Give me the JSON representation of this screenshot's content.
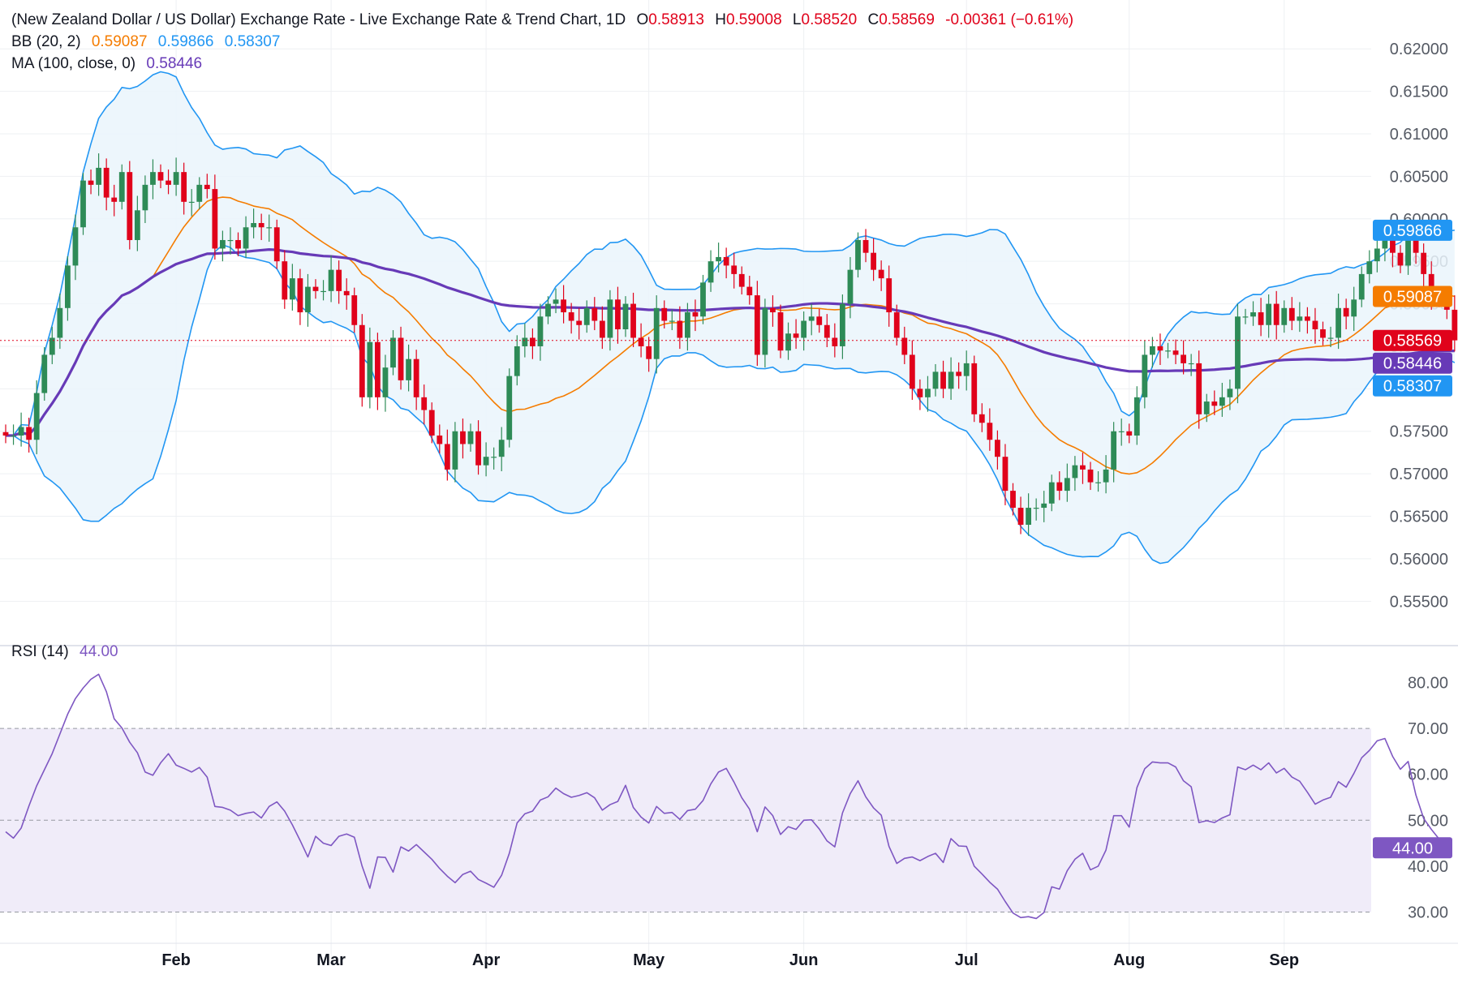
{
  "header": {
    "symbol_title": "(New Zealand Dollar / US Dollar) Exchange Rate - Live Exchange Rate & Trend Chart, 1D",
    "ohlc": {
      "open_label": "O",
      "open": "0.58913",
      "high_label": "H",
      "high": "0.59008",
      "low_label": "L",
      "low": "0.58520",
      "close_label": "C",
      "close": "0.58569",
      "change": "-0.00361 (−0.61%)"
    }
  },
  "indicators": {
    "bb": {
      "label": "BB (20, 2)",
      "basis": "0.59087",
      "upper": "0.59866",
      "lower": "0.58307"
    },
    "ma": {
      "label": "MA (100, close, 0)",
      "value": "0.58446"
    },
    "rsi": {
      "label": "RSI (14)",
      "value": "44.00"
    }
  },
  "colors": {
    "up": "#26a69a",
    "up_candle": "#2e8b57",
    "down": "#e0021b",
    "bb_basis": "#f57c00",
    "bb_band": "#2196f3",
    "bb_fill": "#eaf4fc",
    "ma": "#673ab7",
    "rsi": "#7e57c2",
    "rsi_fill": "#f0ecf9",
    "grid": "#eef0f3",
    "text": "#131722",
    "axis_text": "#555a64"
  },
  "chart_data": [
    {
      "type": "candlestick",
      "title": "(New Zealand Dollar / US Dollar) Exchange Rate - Live Exchange Rate & Trend Chart, 1D",
      "ylim": [
        0.5515,
        0.6225
      ],
      "y_ticks": [
        "0.62000",
        "0.61500",
        "0.61000",
        "0.60500",
        "0.60000",
        "0.59500",
        "0.59000",
        "0.58500",
        "0.58000",
        "0.57500",
        "0.57000",
        "0.56500",
        "0.56000",
        "0.55500"
      ],
      "x_ticks": [
        "Feb",
        "Mar",
        "Apr",
        "May",
        "Jun",
        "Jul",
        "Aug",
        "Sep"
      ],
      "x_tick_days": [
        22,
        42,
        62,
        83,
        103,
        124,
        145,
        165
      ],
      "price_line": 0.58569,
      "closes": [
        0.5745,
        0.5745,
        0.5755,
        0.574,
        0.5795,
        0.584,
        0.586,
        0.5895,
        0.5945,
        0.599,
        0.6045,
        0.604,
        0.606,
        0.6025,
        0.602,
        0.6055,
        0.5975,
        0.601,
        0.604,
        0.6055,
        0.6045,
        0.604,
        0.6055,
        0.602,
        0.602,
        0.604,
        0.6035,
        0.5965,
        0.5975,
        0.5975,
        0.5965,
        0.599,
        0.5995,
        0.599,
        0.599,
        0.595,
        0.5905,
        0.593,
        0.589,
        0.592,
        0.5915,
        0.5915,
        0.594,
        0.5915,
        0.591,
        0.5875,
        0.579,
        0.5855,
        0.579,
        0.5825,
        0.586,
        0.581,
        0.5835,
        0.579,
        0.5775,
        0.5745,
        0.5735,
        0.5705,
        0.575,
        0.5735,
        0.575,
        0.571,
        0.572,
        0.572,
        0.574,
        0.5815,
        0.585,
        0.586,
        0.585,
        0.5885,
        0.59,
        0.5905,
        0.589,
        0.588,
        0.5875,
        0.5895,
        0.588,
        0.586,
        0.5905,
        0.587,
        0.59,
        0.586,
        0.585,
        0.5835,
        0.5895,
        0.588,
        0.588,
        0.586,
        0.589,
        0.5885,
        0.5925,
        0.595,
        0.5955,
        0.5945,
        0.5935,
        0.592,
        0.591,
        0.584,
        0.5895,
        0.589,
        0.5845,
        0.5865,
        0.586,
        0.588,
        0.5885,
        0.5875,
        0.586,
        0.585,
        0.59,
        0.594,
        0.5975,
        0.596,
        0.594,
        0.593,
        0.589,
        0.586,
        0.584,
        0.58,
        0.579,
        0.58,
        0.582,
        0.58,
        0.582,
        0.5815,
        0.583,
        0.577,
        0.576,
        0.574,
        0.572,
        0.568,
        0.566,
        0.564,
        0.566,
        0.566,
        0.5665,
        0.569,
        0.568,
        0.5695,
        0.571,
        0.5705,
        0.569,
        0.569,
        0.5705,
        0.575,
        0.575,
        0.5745,
        0.579,
        0.584,
        0.585,
        0.5845,
        0.5845,
        0.584,
        0.583,
        0.583,
        0.577,
        0.5785,
        0.578,
        0.579,
        0.58,
        0.5885,
        0.5885,
        0.589,
        0.5875,
        0.59,
        0.5875,
        0.5895,
        0.588,
        0.5885,
        0.588,
        0.587,
        0.586,
        0.586,
        0.5895,
        0.5885,
        0.5905,
        0.5935,
        0.595,
        0.5965,
        0.598,
        0.596,
        0.5945,
        0.5975,
        0.596,
        0.5935,
        0.591,
        0.5905,
        0.5893,
        0.5857
      ],
      "bb_upper_note": "Bollinger upper band ends at 0.59866",
      "bb_basis_note": "Bollinger basis ends at 0.59087",
      "bb_lower_note": "Bollinger lower band ends at 0.58307",
      "ma_note": "100-day MA ends at 0.58446",
      "price_labels": [
        "0.59866",
        "0.59087",
        "0.58569",
        "0.58446",
        "0.58307"
      ]
    },
    {
      "type": "line",
      "title": "RSI (14)",
      "ylim": [
        25.5,
        84.5
      ],
      "y_ticks": [
        "80.00",
        "70.00",
        "60.00",
        "50.00",
        "40.00",
        "30.00"
      ],
      "band": [
        30,
        70
      ],
      "midline": 50,
      "values": [
        47.5,
        46.1,
        48.3,
        53.1,
        57.5,
        61.0,
        64.5,
        68.8,
        73.1,
        76.5,
        78.8,
        80.7,
        81.8,
        78.0,
        72.1,
        70.1,
        67.0,
        64.7,
        60.5,
        59.8,
        62.5,
        64.5,
        62.0,
        61.3,
        60.5,
        61.5,
        59.4,
        53.0,
        52.8,
        52.2,
        51.0,
        51.5,
        51.8,
        50.5,
        53.0,
        54.0,
        52.0,
        49.0,
        45.6,
        42.0,
        46.5,
        45.0,
        44.5,
        46.5,
        47.0,
        46.3,
        40.0,
        35.2,
        42.0,
        41.9,
        38.7,
        44.2,
        43.3,
        44.7,
        43.1,
        41.5,
        39.5,
        37.8,
        36.4,
        38.2,
        38.9,
        37.1,
        36.3,
        35.4,
        38.0,
        42.8,
        49.4,
        51.4,
        52.0,
        54.4,
        55.1,
        57.0,
        55.8,
        55.0,
        55.4,
        56.0,
        54.9,
        52.2,
        53.4,
        54.1,
        57.6,
        52.8,
        50.7,
        49.4,
        53.0,
        51.5,
        51.7,
        50.2,
        52.1,
        52.4,
        54.3,
        57.9,
        60.5,
        61.3,
        58.3,
        54.9,
        52.4,
        47.5,
        52.9,
        51.0,
        46.9,
        48.6,
        48.0,
        50.0,
        50.1,
        48.1,
        45.5,
        44.2,
        51.6,
        55.8,
        58.6,
        55.1,
        52.7,
        51.1,
        44.3,
        40.6,
        41.7,
        42.0,
        41.2,
        42.1,
        42.8,
        40.8,
        46.0,
        44.4,
        44.3,
        40.0,
        38.3,
        36.5,
        35.0,
        32.3,
        29.8,
        28.8,
        29.0,
        28.6,
        29.9,
        35.5,
        35.0,
        39.0,
        41.5,
        42.8,
        39.2,
        40.0,
        43.5,
        51.0,
        51.0,
        48.5,
        57.1,
        61.2,
        62.7,
        62.5,
        62.5,
        61.6,
        58.6,
        57.3,
        49.5,
        49.9,
        49.5,
        50.5,
        51.2,
        61.6,
        61.0,
        62.0,
        61.0,
        62.5,
        60.3,
        61.3,
        59.4,
        58.5,
        56.1,
        53.5,
        54.4,
        55.0,
        58.4,
        57.2,
        60.2,
        63.6,
        65.2,
        67.3,
        67.8,
        63.9,
        61.1,
        62.8,
        55.5,
        50.4,
        48.0,
        45.9,
        44.0
      ]
    }
  ]
}
